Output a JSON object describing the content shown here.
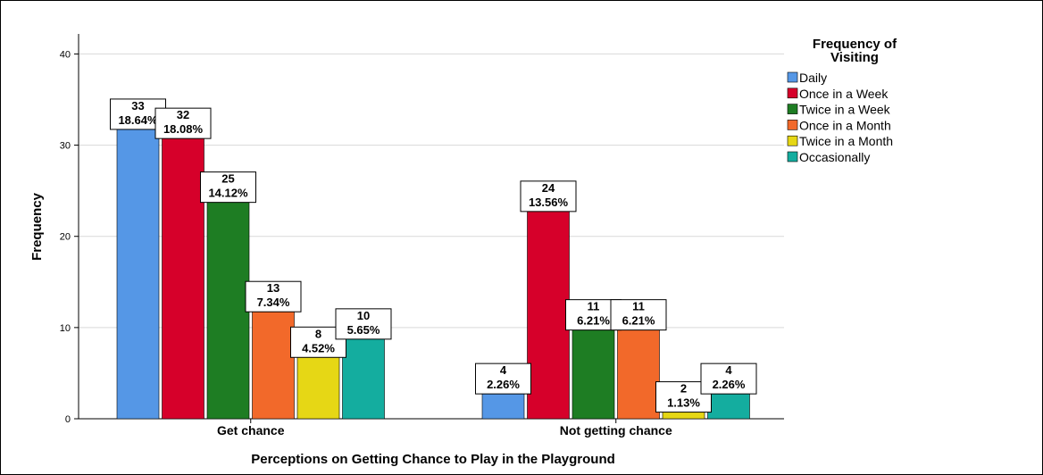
{
  "chart_data": {
    "type": "bar",
    "xlabel": "Perceptions on Getting Chance to Play in the Playground",
    "ylabel": "Frequency",
    "ylim": [
      0,
      42
    ],
    "yticks": [
      0,
      10,
      20,
      30,
      40
    ],
    "grid": true,
    "legend_position": "right",
    "legend_title": [
      "Frequency of",
      "Visiting"
    ],
    "categories": [
      "Get chance",
      "Not getting chance"
    ],
    "series": [
      {
        "name": "Daily",
        "color": "#5597e6",
        "values": [
          33,
          4
        ],
        "labels": [
          "18.64%",
          "2.26%"
        ]
      },
      {
        "name": "Once in a Week",
        "color": "#d6002a",
        "values": [
          32,
          24
        ],
        "labels": [
          "18.08%",
          "13.56%"
        ]
      },
      {
        "name": "Twice in a Week",
        "color": "#1e7d23",
        "values": [
          25,
          11
        ],
        "labels": [
          "14.12%",
          "6.21%"
        ]
      },
      {
        "name": "Once in a Month",
        "color": "#f2692a",
        "values": [
          13,
          11
        ],
        "labels": [
          "7.34%",
          "6.21%"
        ]
      },
      {
        "name": "Twice in a Month",
        "color": "#e6d715",
        "values": [
          8,
          2
        ],
        "labels": [
          "4.52%",
          "1.13%"
        ]
      },
      {
        "name": "Occasionally",
        "color": "#14ad9f",
        "values": [
          10,
          4
        ],
        "labels": [
          "5.65%",
          "2.26%"
        ]
      }
    ]
  }
}
